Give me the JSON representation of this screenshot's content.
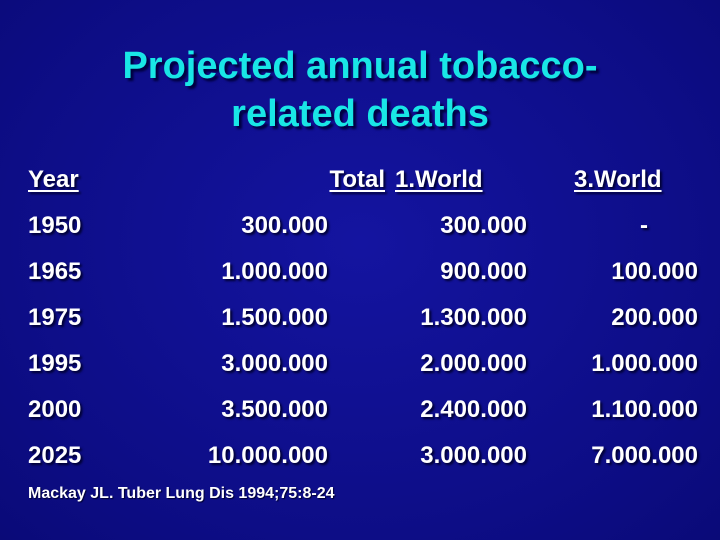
{
  "slide": {
    "title_line1": "Projected annual tobacco-",
    "title_line2": "related deaths",
    "headers": {
      "year": "Year",
      "total": "Total",
      "world1": "1.World",
      "world3": "3.World"
    },
    "rows": [
      {
        "year": "1950",
        "total": "300.000",
        "world1": "300.000",
        "world3": "-"
      },
      {
        "year": "1965",
        "total": "1.000.000",
        "world1": "900.000",
        "world3": "100.000"
      },
      {
        "year": "1975",
        "total": "1.500.000",
        "world1": "1.300.000",
        "world3": "200.000"
      },
      {
        "year": "1995",
        "total": "3.000.000",
        "world1": "2.000.000",
        "world3": "1.000.000"
      },
      {
        "year": "2000",
        "total": "3.500.000",
        "world1": "2.400.000",
        "world3": "1.100.000"
      },
      {
        "year": "2025",
        "total": "10.000.000",
        "world1": "3.000.000",
        "world3": "7.000.000"
      }
    ],
    "footnote": "Mackay JL. Tuber Lung Dis 1994;75:8-24"
  },
  "colors": {
    "background": "#0f0f8c",
    "title": "#19e6e6",
    "text": "#ffffff"
  }
}
